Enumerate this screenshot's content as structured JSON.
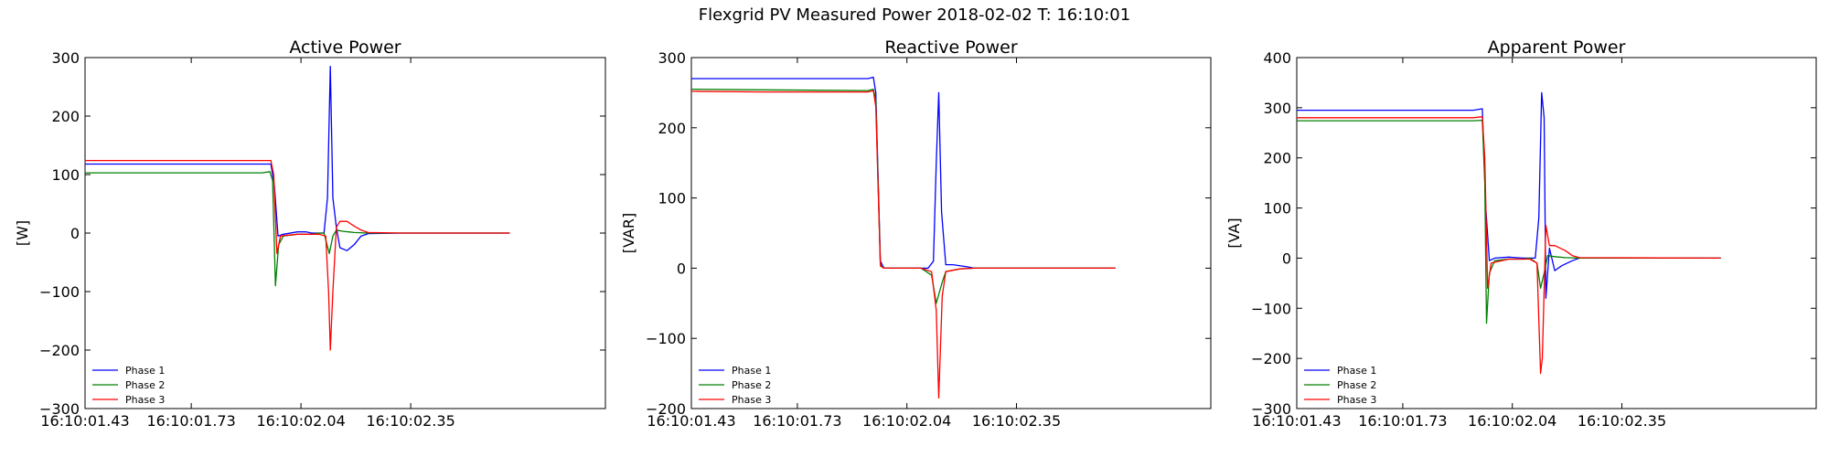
{
  "figure": {
    "title": "Flexgrid PV Measured Power 2018-02-02 T: 16:10:01"
  },
  "chart_data": [
    {
      "type": "line",
      "title": "Active Power",
      "xlabel": "",
      "ylabel": "[W]",
      "x_tick_labels": [
        "16:10:01.43",
        "16:10:01.73",
        "16:10:02.04",
        "16:10:02.35"
      ],
      "x_tick_values": [
        0,
        0.3,
        0.61,
        0.92
      ],
      "xlim": [
        0,
        1.47
      ],
      "ylim": [
        -300,
        300
      ],
      "y_ticks": [
        -300,
        -200,
        -100,
        0,
        100,
        200,
        300
      ],
      "legend_position": "lower-left",
      "series": [
        {
          "name": "Phase 1",
          "color": "#0000ff",
          "points": [
            [
              0,
              118
            ],
            [
              0.2,
              118
            ],
            [
              0.5,
              118
            ],
            [
              0.525,
              118
            ],
            [
              0.535,
              80
            ],
            [
              0.545,
              -5
            ],
            [
              0.56,
              -2
            ],
            [
              0.6,
              2
            ],
            [
              0.625,
              2
            ],
            [
              0.64,
              0
            ],
            [
              0.66,
              0
            ],
            [
              0.675,
              0
            ],
            [
              0.685,
              60
            ],
            [
              0.693,
              285
            ],
            [
              0.7,
              60
            ],
            [
              0.71,
              10
            ],
            [
              0.72,
              -25
            ],
            [
              0.74,
              -30
            ],
            [
              0.76,
              -20
            ],
            [
              0.78,
              -5
            ],
            [
              0.8,
              -1
            ],
            [
              0.9,
              0
            ],
            [
              1.2,
              0
            ]
          ]
        },
        {
          "name": "Phase 2",
          "color": "#008000",
          "points": [
            [
              0,
              103
            ],
            [
              0.2,
              103
            ],
            [
              0.5,
              103
            ],
            [
              0.522,
              105
            ],
            [
              0.53,
              90
            ],
            [
              0.538,
              -90
            ],
            [
              0.547,
              -20
            ],
            [
              0.56,
              -5
            ],
            [
              0.6,
              -2
            ],
            [
              0.64,
              -2
            ],
            [
              0.66,
              0
            ],
            [
              0.675,
              0
            ],
            [
              0.69,
              -35
            ],
            [
              0.7,
              -5
            ],
            [
              0.71,
              5
            ],
            [
              0.73,
              3
            ],
            [
              0.76,
              1
            ],
            [
              0.8,
              0
            ],
            [
              1.2,
              0
            ]
          ]
        },
        {
          "name": "Phase 3",
          "color": "#ff0000",
          "points": [
            [
              0,
              124
            ],
            [
              0.2,
              124
            ],
            [
              0.5,
              124
            ],
            [
              0.525,
              124
            ],
            [
              0.533,
              100
            ],
            [
              0.542,
              -35
            ],
            [
              0.552,
              -5
            ],
            [
              0.6,
              -2
            ],
            [
              0.64,
              -2
            ],
            [
              0.66,
              -2
            ],
            [
              0.68,
              -5
            ],
            [
              0.688,
              -100
            ],
            [
              0.693,
              -200
            ],
            [
              0.7,
              -100
            ],
            [
              0.71,
              10
            ],
            [
              0.72,
              20
            ],
            [
              0.74,
              20
            ],
            [
              0.76,
              12
            ],
            [
              0.78,
              5
            ],
            [
              0.8,
              1
            ],
            [
              0.9,
              0
            ],
            [
              1.2,
              0
            ]
          ]
        }
      ]
    },
    {
      "type": "line",
      "title": "Reactive Power",
      "xlabel": "",
      "ylabel": "[VAR]",
      "x_tick_labels": [
        "16:10:01.43",
        "16:10:01.73",
        "16:10:02.04",
        "16:10:02.35"
      ],
      "x_tick_values": [
        0,
        0.3,
        0.61,
        0.92
      ],
      "xlim": [
        0,
        1.47
      ],
      "ylim": [
        -200,
        300
      ],
      "y_ticks": [
        -200,
        -100,
        0,
        100,
        200,
        300
      ],
      "legend_position": "lower-left",
      "series": [
        {
          "name": "Phase 1",
          "color": "#0000ff",
          "points": [
            [
              0,
              270
            ],
            [
              0.2,
              270
            ],
            [
              0.5,
              270
            ],
            [
              0.515,
              272
            ],
            [
              0.522,
              250
            ],
            [
              0.535,
              10
            ],
            [
              0.545,
              0
            ],
            [
              0.6,
              0
            ],
            [
              0.65,
              0
            ],
            [
              0.67,
              0
            ],
            [
              0.685,
              10
            ],
            [
              0.693,
              150
            ],
            [
              0.7,
              250
            ],
            [
              0.708,
              80
            ],
            [
              0.72,
              5
            ],
            [
              0.74,
              5
            ],
            [
              0.78,
              2
            ],
            [
              0.8,
              0
            ],
            [
              1.2,
              0
            ]
          ]
        },
        {
          "name": "Phase 2",
          "color": "#008000",
          "points": [
            [
              0,
              255
            ],
            [
              0.2,
              254
            ],
            [
              0.5,
              253
            ],
            [
              0.515,
              255
            ],
            [
              0.522,
              240
            ],
            [
              0.535,
              5
            ],
            [
              0.545,
              0
            ],
            [
              0.6,
              0
            ],
            [
              0.65,
              0
            ],
            [
              0.68,
              -10
            ],
            [
              0.693,
              -50
            ],
            [
              0.71,
              -20
            ],
            [
              0.72,
              -5
            ],
            [
              0.76,
              -1
            ],
            [
              0.8,
              0
            ],
            [
              1.2,
              0
            ]
          ]
        },
        {
          "name": "Phase 3",
          "color": "#ff0000",
          "points": [
            [
              0,
              252
            ],
            [
              0.2,
              251
            ],
            [
              0.5,
              251
            ],
            [
              0.515,
              253
            ],
            [
              0.522,
              230
            ],
            [
              0.535,
              3
            ],
            [
              0.545,
              0
            ],
            [
              0.6,
              0
            ],
            [
              0.65,
              0
            ],
            [
              0.68,
              -5
            ],
            [
              0.693,
              -60
            ],
            [
              0.7,
              -185
            ],
            [
              0.71,
              -40
            ],
            [
              0.72,
              -5
            ],
            [
              0.76,
              -1
            ],
            [
              0.8,
              0
            ],
            [
              1.2,
              0
            ]
          ]
        }
      ]
    },
    {
      "type": "line",
      "title": "Apparent Power",
      "xlabel": "",
      "ylabel": "[VA]",
      "x_tick_labels": [
        "16:10:01.43",
        "16:10:01.73",
        "16:10:02.04",
        "16:10:02.35"
      ],
      "x_tick_values": [
        0,
        0.3,
        0.61,
        0.92
      ],
      "xlim": [
        0,
        1.47
      ],
      "ylim": [
        -300,
        400
      ],
      "y_ticks": [
        -300,
        -200,
        -100,
        0,
        100,
        200,
        300,
        400
      ],
      "legend_position": "lower-left",
      "series": [
        {
          "name": "Phase 1",
          "color": "#0000ff",
          "points": [
            [
              0,
              295
            ],
            [
              0.2,
              295
            ],
            [
              0.5,
              295
            ],
            [
              0.525,
              298
            ],
            [
              0.535,
              100
            ],
            [
              0.545,
              -5
            ],
            [
              0.56,
              0
            ],
            [
              0.6,
              2
            ],
            [
              0.64,
              0
            ],
            [
              0.66,
              0
            ],
            [
              0.675,
              0
            ],
            [
              0.685,
              80
            ],
            [
              0.693,
              330
            ],
            [
              0.7,
              280
            ],
            [
              0.705,
              -80
            ],
            [
              0.715,
              20
            ],
            [
              0.73,
              -25
            ],
            [
              0.75,
              -15
            ],
            [
              0.78,
              -5
            ],
            [
              0.8,
              0
            ],
            [
              1.2,
              0
            ]
          ]
        },
        {
          "name": "Phase 2",
          "color": "#008000",
          "points": [
            [
              0,
              274
            ],
            [
              0.2,
              274
            ],
            [
              0.5,
              274
            ],
            [
              0.525,
              275
            ],
            [
              0.532,
              150
            ],
            [
              0.537,
              -130
            ],
            [
              0.545,
              -30
            ],
            [
              0.56,
              -5
            ],
            [
              0.6,
              -2
            ],
            [
              0.64,
              -2
            ],
            [
              0.66,
              0
            ],
            [
              0.68,
              -10
            ],
            [
              0.69,
              -60
            ],
            [
              0.7,
              -30
            ],
            [
              0.71,
              5
            ],
            [
              0.73,
              3
            ],
            [
              0.76,
              1
            ],
            [
              0.8,
              0
            ],
            [
              1.2,
              0
            ]
          ]
        },
        {
          "name": "Phase 3",
          "color": "#ff0000",
          "points": [
            [
              0,
              280
            ],
            [
              0.2,
              280
            ],
            [
              0.5,
              280
            ],
            [
              0.525,
              282
            ],
            [
              0.532,
              200
            ],
            [
              0.54,
              -60
            ],
            [
              0.55,
              -10
            ],
            [
              0.6,
              -2
            ],
            [
              0.64,
              -2
            ],
            [
              0.66,
              -2
            ],
            [
              0.68,
              -10
            ],
            [
              0.69,
              -230
            ],
            [
              0.695,
              -200
            ],
            [
              0.705,
              65
            ],
            [
              0.715,
              25
            ],
            [
              0.73,
              25
            ],
            [
              0.76,
              15
            ],
            [
              0.78,
              5
            ],
            [
              0.8,
              1
            ],
            [
              1.2,
              0
            ]
          ]
        }
      ]
    }
  ]
}
